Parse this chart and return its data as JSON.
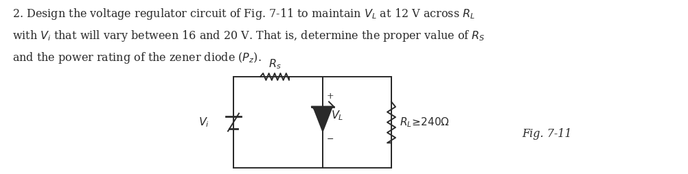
{
  "background_color": "#ffffff",
  "text_line1": "2. Design the voltage regulator circuit of Fig. 7-11 to maintain $V_L$ at 12 V across $R_L$",
  "text_line2": "with $V_i$ that will vary between 16 and 20 V. That is, determine the proper value of $R_S$",
  "text_line3": "and the power rating of the zener diode ($P_z$).",
  "fig_label": "Fig. 7-11",
  "font_size": 11.5,
  "font_color": "#2a2a2a"
}
